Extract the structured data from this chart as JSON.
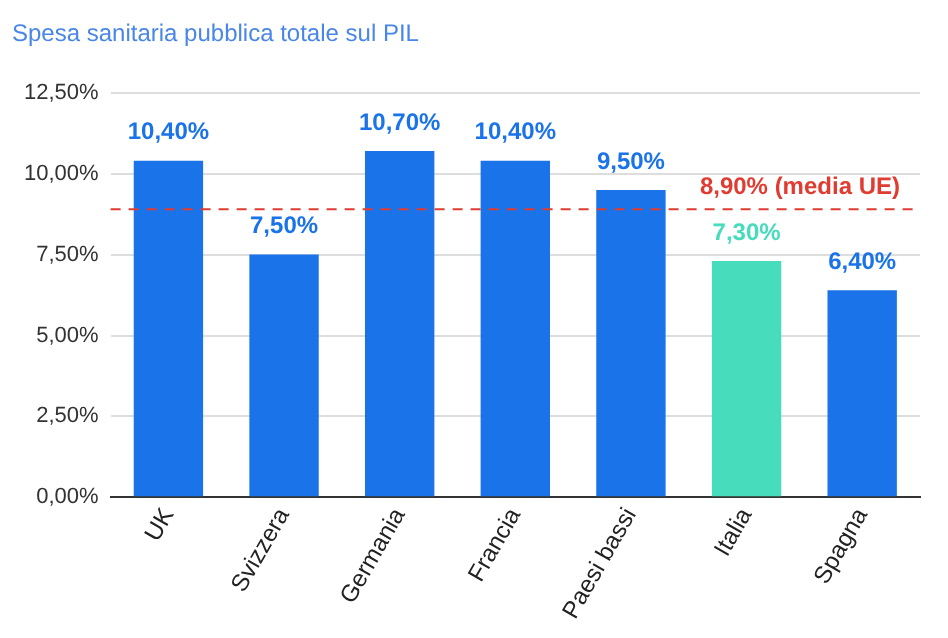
{
  "chart_data": {
    "type": "bar",
    "title": "Spesa sanitaria pubblica totale sul PIL",
    "categories": [
      "UK",
      "Svizzera",
      "Germania",
      "Francia",
      "Paesi bassi",
      "Italia",
      "Spagna"
    ],
    "values": [
      10.4,
      7.5,
      10.7,
      10.4,
      9.5,
      7.3,
      6.4
    ],
    "colors": [
      "#1a73e8",
      "#1a73e8",
      "#1a73e8",
      "#1a73e8",
      "#1a73e8",
      "#46dcbc",
      "#1a73e8"
    ],
    "value_labels": [
      "10,40%",
      "7,50%",
      "10,70%",
      "10,40%",
      "9,50%",
      "7,30%",
      "6,40%"
    ],
    "ylim": [
      0,
      12.5
    ],
    "yticks": [
      {
        "value": 0,
        "label": "0,00%"
      },
      {
        "value": 2.5,
        "label": "2,50%"
      },
      {
        "value": 5,
        "label": "5,00%"
      },
      {
        "value": 7.5,
        "label": "7,50%"
      },
      {
        "value": 10,
        "label": "10,00%"
      },
      {
        "value": 12.5,
        "label": "12,50%"
      }
    ],
    "ref_lines": [
      {
        "axis": "y",
        "value": 8.9,
        "label": "8,90% (media UE)",
        "color": "#e03c31",
        "line_style": "dashed"
      }
    ],
    "grid": "y",
    "legend": false
  }
}
